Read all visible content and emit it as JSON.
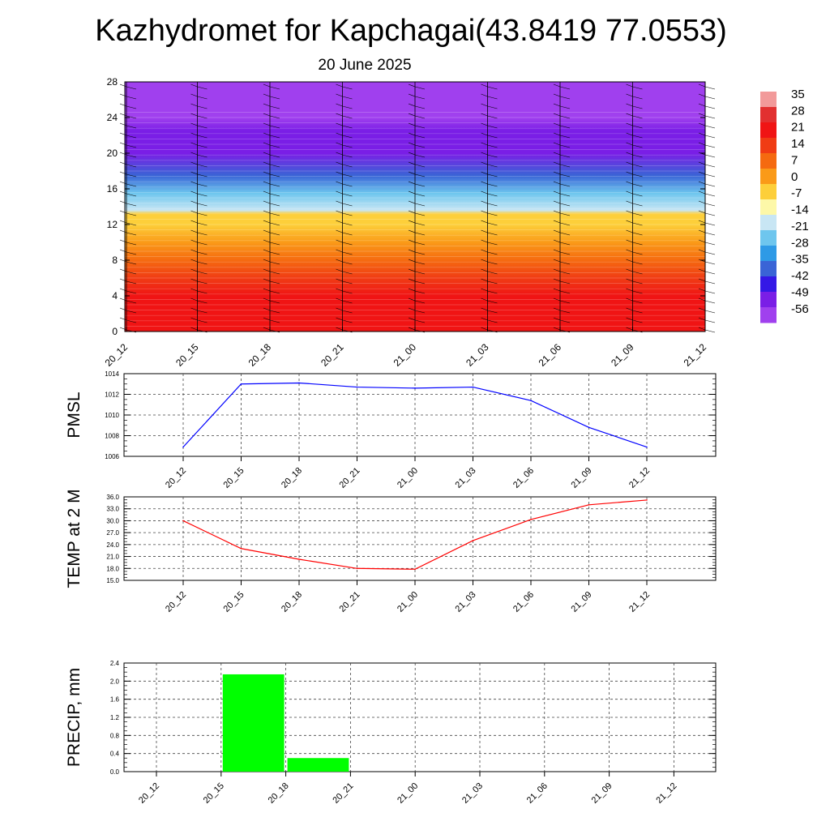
{
  "title": "Kazhydromet for Kapchagai(43.8419 77.0553)",
  "subtitle": "20 June 2025",
  "chart_data": [
    {
      "type": "heatmap",
      "x_tick_labels": [
        "20_12",
        "20_15",
        "20_18",
        "20_21",
        "21_00",
        "21_03",
        "21_06",
        "21_09",
        "21_12"
      ],
      "y_tick_labels": [
        "0",
        "4",
        "8",
        "12",
        "16",
        "20",
        "24",
        "28"
      ],
      "ylim": [
        0,
        28
      ],
      "colorbar_labels": [
        "35",
        "28",
        "21",
        "14",
        "7",
        "0",
        "-7",
        "-14",
        "-21",
        "-28",
        "-35",
        "-42",
        "-49",
        "-56"
      ],
      "colorbar_colors": [
        "#f29a9a",
        "#e23030",
        "#f01414",
        "#f03c14",
        "#f56a10",
        "#fa9a18",
        "#fdcf3a",
        "#fdf8a8",
        "#c8e6f4",
        "#6ec6ee",
        "#2e9ae6",
        "#3a64d6",
        "#3418e6",
        "#7a1ee6",
        "#a040ee"
      ],
      "temperature_profile": [
        {
          "h": 0,
          "c": 22
        },
        {
          "h": 4,
          "c": 20
        },
        {
          "h": 6,
          "c": 14
        },
        {
          "h": 8,
          "c": 8
        },
        {
          "h": 10,
          "c": 2
        },
        {
          "h": 12,
          "c": -4
        },
        {
          "h": 13.2,
          "c": -9
        },
        {
          "h": 13.6,
          "c": -18
        },
        {
          "h": 15.5,
          "c": -28
        },
        {
          "h": 17.5,
          "c": -40
        },
        {
          "h": 20,
          "c": -56
        },
        {
          "h": 22.5,
          "c": -52
        },
        {
          "h": 24,
          "c": -60
        },
        {
          "h": 28,
          "c": -60
        }
      ]
    },
    {
      "type": "line",
      "ylabel": "PMSL",
      "x": [
        "20_12",
        "20_15",
        "20_18",
        "20_21",
        "21_00",
        "21_03",
        "21_06",
        "21_09",
        "21_12"
      ],
      "values": [
        1006.9,
        1013.0,
        1013.1,
        1012.7,
        1012.6,
        1012.7,
        1011.4,
        1008.8,
        1006.9
      ],
      "ylim": [
        1006,
        1014
      ],
      "y_ticks": [
        "1006",
        "1008",
        "1010",
        "1012",
        "1014"
      ],
      "color": "#0000ff",
      "grid": true
    },
    {
      "type": "line",
      "ylabel": "TEMP at 2 M",
      "x": [
        "20_12",
        "20_15",
        "20_18",
        "20_21",
        "21_00",
        "21_03",
        "21_06",
        "21_09",
        "21_12"
      ],
      "values": [
        30.0,
        23.0,
        20.3,
        18.0,
        17.8,
        25.0,
        30.3,
        34.0,
        35.2
      ],
      "ylim": [
        15,
        36
      ],
      "y_ticks": [
        "15.0",
        "18.0",
        "21.0",
        "24.0",
        "27.0",
        "30.0",
        "33.0",
        "36.0"
      ],
      "color": "#ff0000",
      "grid": true
    },
    {
      "type": "bar",
      "ylabel": "PRECIP, mm",
      "categories": [
        "20_12",
        "20_15",
        "20_18",
        "20_21",
        "21_00",
        "21_03",
        "21_06",
        "21_09",
        "21_12"
      ],
      "values": [
        0,
        2.15,
        0.3,
        0,
        0,
        0,
        0,
        0,
        0
      ],
      "ylim": [
        0,
        2.4
      ],
      "y_ticks": [
        "0.0",
        "0.4",
        "0.8",
        "1.2",
        "1.6",
        "2.0",
        "2.4"
      ],
      "color": "#00ff00",
      "grid": true
    }
  ]
}
